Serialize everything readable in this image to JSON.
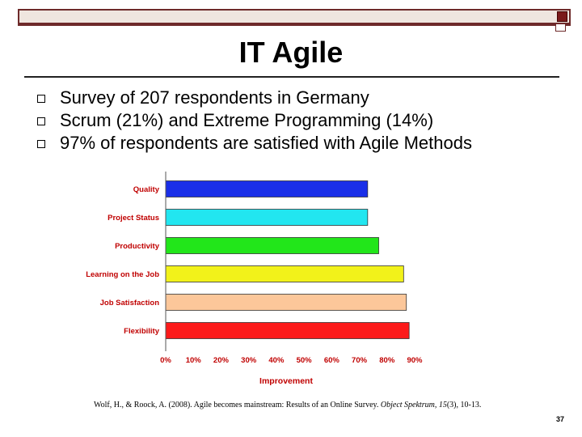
{
  "slide": {
    "title": "IT Agile",
    "bullets": [
      "Survey of 207 respondents in Germany",
      "Scrum (21%) and Extreme Programming (14%)",
      "97% of respondents are satisfied with Agile Methods"
    ],
    "citation_plain": "Wolf, H., & Roock, A. (2008). Agile becomes mainstream: Results of an Online Survey.",
    "citation_journal": "Object Spektrum, 15",
    "citation_tail": "(3), 10-13.",
    "page_number": "37"
  },
  "colors": {
    "frame": "#6e2a2a",
    "label_text": "#c00000",
    "bars": [
      "#1a2fe8",
      "#22e6f0",
      "#22e61a",
      "#f2f21a",
      "#fcc79a",
      "#fc1a1a"
    ]
  },
  "chart_data": {
    "type": "bar",
    "orientation": "horizontal",
    "title": "",
    "xlabel": "Improvement",
    "ylabel": "",
    "categories": [
      "Quality",
      "Project Status",
      "Productivity",
      "Learning on the Job",
      "Job Satisfaction",
      "Flexibility"
    ],
    "values": [
      73,
      73,
      77,
      86,
      87,
      88
    ],
    "xlim": [
      0,
      90
    ],
    "ticks": [
      "0%",
      "10%",
      "20%",
      "30%",
      "40%",
      "50%",
      "60%",
      "70%",
      "80%",
      "90%"
    ],
    "grid": false
  }
}
